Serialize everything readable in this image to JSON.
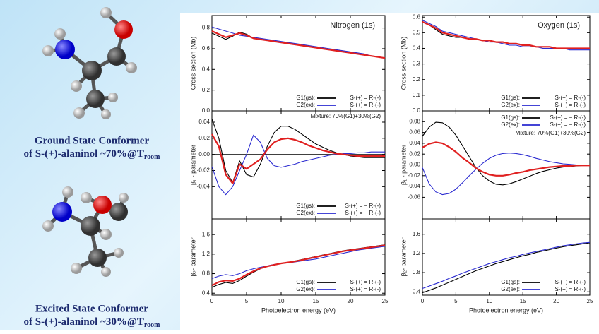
{
  "captions": [
    {
      "title": "Ground State Conformer",
      "line": "of S-(+)-alaninol ~70%@T",
      "subscript": "room"
    },
    {
      "title": "Excited State Conformer",
      "line": "of S-(+)-alaninol ~30%@T",
      "subscript": "room"
    }
  ],
  "chart_data": [
    {
      "type": "line",
      "title": "Nitrogen (1s)",
      "ylabel": "Cross section (Mb)",
      "x": [
        0,
        1,
        2,
        3,
        4,
        5,
        6,
        7,
        8,
        9,
        10,
        11,
        12,
        13,
        14,
        15,
        16,
        17,
        18,
        19,
        20,
        21,
        22,
        23,
        24,
        25
      ],
      "xlim": [
        0,
        25
      ],
      "xticks": [
        0,
        5,
        10,
        15,
        20,
        25
      ],
      "ylim": [
        0,
        0.92
      ],
      "yticks": [
        {
          "value": 0,
          "label": "0.0"
        },
        0.2,
        0.4,
        0.6,
        0.8
      ],
      "legend": "lower right",
      "series": [
        {
          "name": "G1(gs):",
          "note": "S-(+) = R-(-)",
          "color": "#000000",
          "values": [
            0.75,
            0.72,
            0.69,
            0.72,
            0.76,
            0.74,
            0.7,
            0.69,
            0.68,
            0.67,
            0.66,
            0.65,
            0.64,
            0.63,
            0.62,
            0.61,
            0.6,
            0.59,
            0.58,
            0.57,
            0.56,
            0.55,
            0.54,
            0.53,
            0.52,
            0.51
          ]
        },
        {
          "name": "G2(ex):",
          "note": "S-(+) = R-(-)",
          "color": "#2a2ad0",
          "values": [
            0.81,
            0.79,
            0.77,
            0.75,
            0.73,
            0.72,
            0.71,
            0.7,
            0.69,
            0.68,
            0.67,
            0.66,
            0.65,
            0.64,
            0.63,
            0.62,
            0.61,
            0.6,
            0.59,
            0.58,
            0.57,
            0.56,
            0.55,
            0.53,
            0.52,
            0.51
          ]
        },
        {
          "color": "#e02020",
          "values": [
            0.77,
            0.74,
            0.71,
            0.73,
            0.75,
            0.73,
            0.7,
            0.69,
            0.68,
            0.67,
            0.66,
            0.65,
            0.64,
            0.63,
            0.62,
            0.61,
            0.6,
            0.59,
            0.58,
            0.57,
            0.56,
            0.55,
            0.54,
            0.53,
            0.52,
            0.51
          ]
        }
      ]
    },
    {
      "type": "line",
      "ylabel": "β₁ - parameter",
      "annotation": "Mixture: 70%(G1)+30%(G2)",
      "annotation_color": "#e02020",
      "x": [
        0,
        1,
        2,
        3,
        4,
        5,
        6,
        7,
        8,
        9,
        10,
        11,
        12,
        13,
        14,
        15,
        16,
        17,
        18,
        19,
        20,
        21,
        22,
        23,
        24,
        25
      ],
      "xlim": [
        0,
        25
      ],
      "xticks": [
        0,
        5,
        10,
        15,
        20,
        25
      ],
      "ylim": [
        -0.08,
        0.054
      ],
      "yticks": [
        -0.04,
        -0.02,
        {
          "value": 0,
          "label": "0.00"
        },
        0.02,
        0.04
      ],
      "zero_line": true,
      "legend": "lower right",
      "series": [
        {
          "name": "G1(gs):",
          "note": "S-(+) = − R-(-)",
          "color": "#000000",
          "values": [
            0.044,
            0.02,
            -0.02,
            -0.035,
            -0.008,
            -0.025,
            -0.028,
            -0.012,
            0.01,
            0.027,
            0.035,
            0.035,
            0.031,
            0.025,
            0.019,
            0.013,
            0.009,
            0.005,
            0.002,
            0.0,
            -0.002,
            -0.003,
            -0.004,
            -0.004,
            -0.004,
            -0.004
          ]
        },
        {
          "name": "G2(ex):",
          "note": "S-(+) = − R-(-)",
          "color": "#2a2ad0",
          "values": [
            -0.015,
            -0.04,
            -0.05,
            -0.04,
            -0.02,
            0.0,
            0.024,
            0.015,
            -0.005,
            -0.014,
            -0.016,
            -0.014,
            -0.012,
            -0.009,
            -0.007,
            -0.005,
            -0.003,
            -0.001,
            0.0,
            0.001,
            0.001,
            0.002,
            0.002,
            0.003,
            0.003,
            0.003
          ]
        },
        {
          "color": "#e02020",
          "values": [
            0.025,
            0.01,
            -0.025,
            -0.036,
            -0.012,
            -0.018,
            -0.012,
            -0.006,
            0.006,
            0.015,
            0.019,
            0.02,
            0.018,
            0.015,
            0.011,
            0.008,
            0.005,
            0.003,
            0.001,
            0.0,
            -0.001,
            -0.002,
            -0.002,
            -0.002,
            -0.002,
            -0.002
          ]
        }
      ]
    },
    {
      "type": "line",
      "ylabel": "β₂- parameter",
      "xlabel": "Photoelectron energy (eV)",
      "x": [
        0,
        1,
        2,
        3,
        4,
        5,
        6,
        7,
        8,
        9,
        10,
        11,
        12,
        13,
        14,
        15,
        16,
        17,
        18,
        19,
        20,
        21,
        22,
        23,
        24,
        25
      ],
      "xlim": [
        0,
        25
      ],
      "xticks": [
        0,
        5,
        10,
        15,
        20,
        25
      ],
      "ylim": [
        0.36,
        1.92
      ],
      "yticks": [
        0.4,
        0.8,
        1.2,
        1.6
      ],
      "legend": "lower right",
      "series": [
        {
          "name": "G1(gs):",
          "note": "S-(+) = R-(-)",
          "color": "#000000",
          "values": [
            0.52,
            0.58,
            0.62,
            0.6,
            0.66,
            0.75,
            0.83,
            0.9,
            0.95,
            0.98,
            1.01,
            1.03,
            1.06,
            1.09,
            1.12,
            1.15,
            1.18,
            1.21,
            1.24,
            1.27,
            1.29,
            1.31,
            1.33,
            1.35,
            1.37,
            1.39
          ]
        },
        {
          "name": "G2(ex):",
          "note": "S-(+) = R-(-)",
          "color": "#2a2ad0",
          "values": [
            0.7,
            0.75,
            0.78,
            0.76,
            0.8,
            0.86,
            0.9,
            0.93,
            0.96,
            0.99,
            1.01,
            1.02,
            1.04,
            1.06,
            1.08,
            1.1,
            1.13,
            1.16,
            1.19,
            1.22,
            1.25,
            1.28,
            1.3,
            1.32,
            1.34,
            1.36
          ]
        },
        {
          "color": "#e02020",
          "values": [
            0.56,
            0.63,
            0.66,
            0.65,
            0.7,
            0.78,
            0.85,
            0.91,
            0.95,
            0.98,
            1.01,
            1.03,
            1.05,
            1.08,
            1.11,
            1.14,
            1.17,
            1.2,
            1.23,
            1.26,
            1.28,
            1.3,
            1.32,
            1.34,
            1.36,
            1.38
          ]
        }
      ]
    },
    {
      "type": "line",
      "title": "Oxygen (1s)",
      "ylabel": "Cross section (Mb)",
      "x": [
        0,
        1,
        2,
        3,
        4,
        5,
        6,
        7,
        8,
        9,
        10,
        11,
        12,
        13,
        14,
        15,
        16,
        17,
        18,
        19,
        20,
        21,
        22,
        23,
        24,
        25
      ],
      "xlim": [
        0,
        25
      ],
      "xticks": [
        0,
        5,
        10,
        15,
        20,
        25
      ],
      "ylim": [
        0,
        0.61
      ],
      "yticks": [
        {
          "value": 0,
          "label": "0.0"
        },
        0.1,
        0.2,
        0.3,
        0.4,
        0.5,
        0.6
      ],
      "legend": "lower right",
      "series": [
        {
          "name": "G1(gs):",
          "note": "S-(+) = R-(-)",
          "color": "#000000",
          "values": [
            0.57,
            0.55,
            0.52,
            0.49,
            0.48,
            0.47,
            0.47,
            0.46,
            0.46,
            0.45,
            0.45,
            0.44,
            0.44,
            0.43,
            0.43,
            0.42,
            0.42,
            0.41,
            0.41,
            0.41,
            0.4,
            0.4,
            0.4,
            0.4,
            0.4,
            0.4
          ]
        },
        {
          "name": "G2(ex):",
          "note": "S-(+) = R-(-)",
          "color": "#2a2ad0",
          "values": [
            0.58,
            0.56,
            0.54,
            0.51,
            0.5,
            0.49,
            0.48,
            0.47,
            0.46,
            0.45,
            0.44,
            0.44,
            0.43,
            0.42,
            0.42,
            0.41,
            0.41,
            0.41,
            0.4,
            0.4,
            0.4,
            0.4,
            0.39,
            0.39,
            0.39,
            0.39
          ]
        },
        {
          "color": "#e02020",
          "values": [
            0.57,
            0.55,
            0.53,
            0.5,
            0.49,
            0.48,
            0.47,
            0.46,
            0.46,
            0.45,
            0.45,
            0.44,
            0.44,
            0.43,
            0.43,
            0.42,
            0.42,
            0.41,
            0.41,
            0.41,
            0.4,
            0.4,
            0.4,
            0.4,
            0.4,
            0.4
          ]
        }
      ]
    },
    {
      "type": "line",
      "ylabel": "β₁ - parameter",
      "annotation": "Mixture: 70%(G1)+30%(G2)",
      "annotation_color": "#e02020",
      "x": [
        0,
        1,
        2,
        3,
        4,
        5,
        6,
        7,
        8,
        9,
        10,
        11,
        12,
        13,
        14,
        15,
        16,
        17,
        18,
        19,
        20,
        21,
        22,
        23,
        24,
        25
      ],
      "xlim": [
        0,
        25
      ],
      "xticks": [
        0,
        5,
        10,
        15,
        20,
        25
      ],
      "ylim": [
        -0.1,
        0.1
      ],
      "yticks": [
        -0.06,
        -0.04,
        -0.02,
        {
          "value": 0,
          "label": "0.00"
        },
        0.02,
        0.04,
        0.06,
        0.08
      ],
      "zero_line": true,
      "legend": "upper right",
      "series": [
        {
          "name": "G1(gs):",
          "note": "S-(+) = − R-(-)",
          "color": "#000000",
          "values": [
            0.053,
            0.07,
            0.079,
            0.078,
            0.07,
            0.055,
            0.035,
            0.015,
            -0.005,
            -0.02,
            -0.03,
            -0.036,
            -0.037,
            -0.035,
            -0.031,
            -0.026,
            -0.021,
            -0.016,
            -0.012,
            -0.009,
            -0.006,
            -0.004,
            -0.003,
            -0.002,
            -0.001,
            -0.001
          ]
        },
        {
          "name": "G2(ex):",
          "note": "S-(+) = − R-(-)",
          "color": "#2a2ad0",
          "values": [
            -0.005,
            -0.035,
            -0.05,
            -0.055,
            -0.053,
            -0.045,
            -0.033,
            -0.02,
            -0.008,
            0.003,
            0.012,
            0.018,
            0.021,
            0.022,
            0.021,
            0.019,
            0.016,
            0.012,
            0.009,
            0.006,
            0.004,
            0.002,
            0.001,
            0.0,
            0.0,
            0.0
          ]
        },
        {
          "color": "#e02020",
          "values": [
            0.032,
            0.039,
            0.042,
            0.04,
            0.033,
            0.024,
            0.013,
            0.004,
            -0.006,
            -0.013,
            -0.018,
            -0.02,
            -0.02,
            -0.018,
            -0.015,
            -0.013,
            -0.01,
            -0.008,
            -0.006,
            -0.004,
            -0.003,
            -0.002,
            -0.002,
            -0.001,
            -0.001,
            -0.001
          ]
        }
      ]
    },
    {
      "type": "line",
      "ylabel": "β₂- parameter",
      "xlabel": "Photoelectron energy (eV)",
      "x": [
        0,
        1,
        2,
        3,
        4,
        5,
        6,
        7,
        8,
        9,
        10,
        11,
        12,
        13,
        14,
        15,
        16,
        17,
        18,
        19,
        20,
        21,
        22,
        23,
        24,
        25
      ],
      "xlim": [
        0,
        25
      ],
      "xticks": [
        0,
        5,
        10,
        15,
        20,
        25
      ],
      "ylim": [
        0.33,
        1.92
      ],
      "yticks": [
        0.4,
        0.8,
        1.2,
        1.6
      ],
      "legend": "lower right",
      "series": [
        {
          "name": "G1(gs):",
          "note": "S-(+) = R-(-)",
          "color": "#000000",
          "values": [
            0.38,
            0.43,
            0.48,
            0.54,
            0.6,
            0.66,
            0.72,
            0.78,
            0.84,
            0.89,
            0.94,
            0.99,
            1.03,
            1.07,
            1.11,
            1.15,
            1.18,
            1.22,
            1.25,
            1.28,
            1.31,
            1.34,
            1.36,
            1.38,
            1.4,
            1.42
          ]
        },
        {
          "name": "G2(ex):",
          "note": "S-(+) = R-(-)",
          "color": "#2a2ad0",
          "values": [
            0.47,
            0.52,
            0.57,
            0.62,
            0.68,
            0.73,
            0.79,
            0.84,
            0.89,
            0.94,
            0.99,
            1.03,
            1.07,
            1.11,
            1.14,
            1.18,
            1.21,
            1.24,
            1.27,
            1.3,
            1.33,
            1.36,
            1.38,
            1.4,
            1.42,
            1.43
          ]
        }
      ]
    }
  ]
}
